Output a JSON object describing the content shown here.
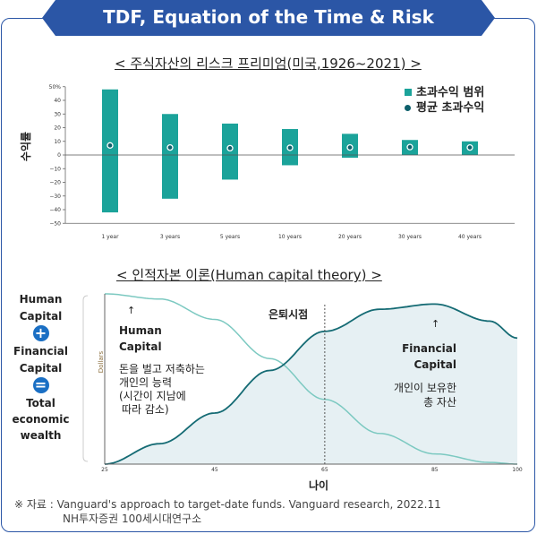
{
  "title": "TDF, Equation of the Time & Risk",
  "chart1": {
    "subtitle": "< 주식자산의 리스크 프리미엄(미국,1926~2021) >",
    "ylabel": "수익률",
    "legend": {
      "range": "초과수익 범위",
      "mean": "평균 초과수익"
    },
    "yticks": [
      "50%",
      "40",
      "30",
      "20",
      "10",
      "0",
      "−10",
      "−20",
      "−30",
      "−40",
      "−50"
    ]
  },
  "chart2": {
    "subtitle": "< 인적자본 이론(Human capital theory) >",
    "ylabel": "Dollars",
    "xlabel": "나이",
    "xticks": [
      "25",
      "45",
      "65",
      "85",
      "100"
    ],
    "retire_label": "은퇴시점",
    "hc_title": "Human Capital",
    "hc_desc": [
      "돈을 벌고 저축하는",
      "개인의 능력",
      "(시간이 지남에",
      "따라 감소)"
    ],
    "fc_title": "Financial Capital",
    "fc_desc": [
      "개인이 보유한",
      "총 자산"
    ]
  },
  "equation": {
    "human": "Human Capital",
    "plus": "+",
    "financial": "Financial Capital",
    "equals": "=",
    "total": "Total economic wealth"
  },
  "source": {
    "line1": "※ 자료 : Vanguard's approach to target-date funds. Vanguard research, 2022.11",
    "line2": "NH투자증권 100세시대연구소"
  },
  "colors": {
    "bar": "#1ba39a",
    "mean": "#0d5f6b",
    "banner": "#2b56a6",
    "human_curve": "#7cc9c1",
    "financial_curve": "#156b74",
    "fill": "#e6f0f3"
  },
  "chart_data": [
    {
      "type": "bar",
      "categories": [
        "1 year",
        "3 years",
        "5 years",
        "10 years",
        "20 years",
        "30 years",
        "40 years"
      ],
      "series": [
        {
          "name": "초과수익 범위",
          "high": [
            48,
            30,
            23,
            19,
            15.5,
            11,
            10
          ],
          "low": [
            -42,
            -32,
            -18,
            -7.5,
            -2,
            0,
            0
          ]
        },
        {
          "name": "평균 초과수익",
          "values": [
            7,
            5.5,
            5,
            5.3,
            5.5,
            5.8,
            5.5
          ]
        }
      ],
      "ylim": [
        -50,
        50
      ]
    },
    {
      "type": "line",
      "x": [
        25,
        35,
        45,
        55,
        65,
        75,
        85,
        95,
        100
      ],
      "series": [
        {
          "name": "Human Capital",
          "values": [
            100,
            97,
            85,
            62,
            38,
            18,
            6,
            1,
            0
          ]
        },
        {
          "name": "Financial Capital",
          "values": [
            0,
            12,
            30,
            55,
            78,
            91,
            94,
            84,
            74
          ]
        }
      ],
      "xlim": [
        25,
        100
      ],
      "retirement_age": 65
    }
  ]
}
